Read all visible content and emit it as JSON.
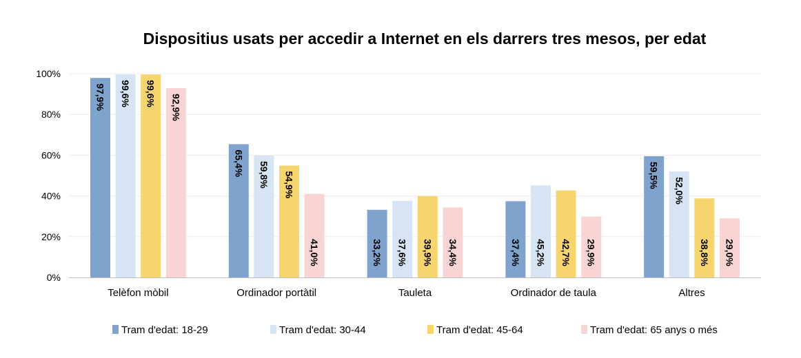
{
  "chart_data": {
    "type": "bar",
    "title": "Dispositius usats per accedir a Internet en els darrers tres mesos, per edat",
    "xlabel": "",
    "ylabel": "",
    "ylim": [
      0,
      100
    ],
    "y_ticks": [
      "0%",
      "20%",
      "40%",
      "60%",
      "80%",
      "100%"
    ],
    "grid": true,
    "legend_position": "bottom",
    "categories": [
      "Telèfon mòbil",
      "Ordinador portàtil",
      "Tauleta",
      "Ordinador de taula",
      "Altres"
    ],
    "series": [
      {
        "name": "Tram d'edat: 18-29",
        "color": "#7fa3cc",
        "values": [
          97.9,
          65.4,
          33.2,
          37.4,
          59.5
        ],
        "labels": [
          "97,9%",
          "65,4%",
          "33,2%",
          "37,4%",
          "59,5%"
        ]
      },
      {
        "name": "Tram d'edat: 30-44",
        "color": "#d6e4f3",
        "values": [
          99.6,
          59.8,
          37.6,
          45.2,
          52.0
        ],
        "labels": [
          "99,6%",
          "59,8%",
          "37,6%",
          "45,2%",
          "52,0%"
        ]
      },
      {
        "name": "Tram d'edat: 45-64",
        "color": "#f7d56e",
        "values": [
          99.6,
          54.9,
          39.9,
          42.7,
          38.8
        ],
        "labels": [
          "99,6%",
          "54,9%",
          "39,9%",
          "42,7%",
          "38,8%"
        ]
      },
      {
        "name": "Tram d'edat: 65 anys o més",
        "color": "#f9d4d4",
        "values": [
          92.9,
          41.0,
          34.4,
          29.9,
          29.0
        ],
        "labels": [
          "92,9%",
          "41,0%",
          "34,4%",
          "29,9%",
          "29,0%"
        ]
      }
    ]
  }
}
